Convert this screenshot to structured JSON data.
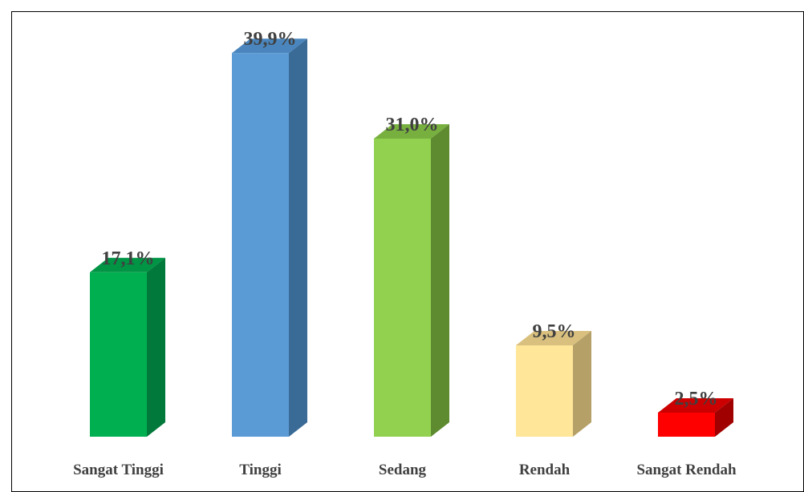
{
  "chart_data": {
    "type": "bar",
    "title": "",
    "xlabel": "",
    "ylabel": "",
    "categories": [
      "Sangat Tinggi",
      "Tinggi",
      "Sedang",
      "Rendah",
      "Sangat Rendah"
    ],
    "values": [
      17.1,
      39.9,
      31.0,
      9.5,
      2.5
    ],
    "data_labels": [
      "17,1%",
      "39,9%",
      "31,0%",
      "9,5%",
      "2,5%"
    ],
    "ylim": [
      0,
      40
    ],
    "grid": false,
    "legend": "none",
    "style": "3d-column",
    "colors": [
      {
        "front": "#00b050",
        "side": "#00793a",
        "top": "#009445"
      },
      {
        "front": "#5b9bd5",
        "side": "#3a6a96",
        "top": "#4a86bd"
      },
      {
        "front": "#92d050",
        "side": "#5e8a30",
        "top": "#78b040"
      },
      {
        "front": "#ffe699",
        "side": "#b5a068",
        "top": "#d9c07e"
      },
      {
        "front": "#ff0000",
        "side": "#a00000",
        "top": "#cc0000"
      }
    ]
  }
}
